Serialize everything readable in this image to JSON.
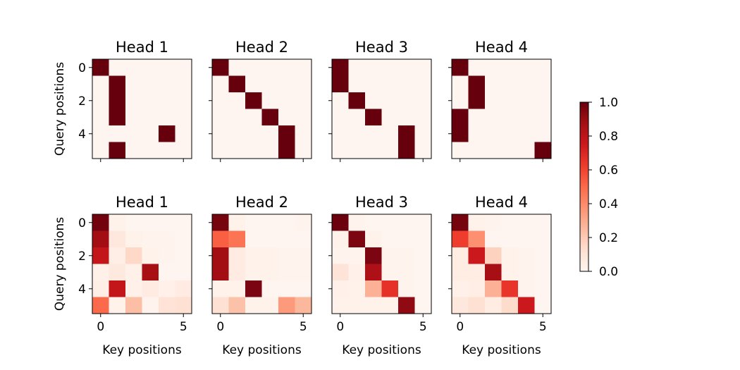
{
  "chart_data": {
    "type": "heatmap",
    "grid": false,
    "colormap": "Reds",
    "colorbar": {
      "min": 0.0,
      "max": 1.0,
      "ticks": [
        "0.0",
        "0.2",
        "0.4",
        "0.6",
        "0.8",
        "1.0"
      ]
    },
    "xlabel": "Key positions",
    "ylabel": "Query positions",
    "x_ticks": [
      "0",
      "5"
    ],
    "y_ticks": [
      "0",
      "2",
      "4"
    ],
    "rows": 6,
    "cols": 6,
    "panels": [
      {
        "title": "Head 1",
        "values": [
          [
            1,
            0,
            0,
            0,
            0,
            0
          ],
          [
            0,
            1,
            0,
            0,
            0,
            0
          ],
          [
            0,
            1,
            0,
            0,
            0,
            0
          ],
          [
            0,
            1,
            0,
            0,
            0,
            0
          ],
          [
            0,
            0,
            0,
            0,
            1,
            0
          ],
          [
            0,
            1,
            0,
            0,
            0,
            0
          ]
        ]
      },
      {
        "title": "Head 2",
        "values": [
          [
            1,
            0,
            0,
            0,
            0,
            0
          ],
          [
            0,
            1,
            0,
            0,
            0,
            0
          ],
          [
            0,
            0,
            1,
            0,
            0,
            0
          ],
          [
            0,
            0,
            0,
            1,
            0,
            0
          ],
          [
            0,
            0,
            0,
            0,
            1,
            0
          ],
          [
            0,
            0,
            0,
            0,
            1,
            0
          ]
        ]
      },
      {
        "title": "Head 3",
        "values": [
          [
            1,
            0,
            0,
            0,
            0,
            0
          ],
          [
            1,
            0,
            0,
            0,
            0,
            0
          ],
          [
            0,
            1,
            0,
            0,
            0,
            0
          ],
          [
            0,
            0,
            1,
            0,
            0,
            0
          ],
          [
            0,
            0,
            0,
            0,
            1,
            0
          ],
          [
            0,
            0,
            0,
            0,
            1,
            0
          ]
        ]
      },
      {
        "title": "Head 4",
        "values": [
          [
            1,
            0,
            0,
            0,
            0,
            0
          ],
          [
            0,
            1,
            0,
            0,
            0,
            0
          ],
          [
            0,
            1,
            0,
            0,
            0,
            0
          ],
          [
            1,
            0,
            0,
            0,
            0,
            0
          ],
          [
            1,
            0,
            0,
            0,
            0,
            0
          ],
          [
            0,
            0,
            0,
            0,
            0,
            1
          ]
        ]
      },
      {
        "title": "Head 1",
        "values": [
          [
            0.98,
            0.02,
            0,
            0,
            0,
            0
          ],
          [
            0.88,
            0.08,
            0.02,
            0.01,
            0.01,
            0
          ],
          [
            0.78,
            0.04,
            0.15,
            0.02,
            0.01,
            0
          ],
          [
            0.03,
            0.07,
            0.03,
            0.87,
            0,
            0
          ],
          [
            0.04,
            0.78,
            0.03,
            0.06,
            0.03,
            0.06
          ],
          [
            0.5,
            0.02,
            0.24,
            0.01,
            0.11,
            0.12
          ]
        ]
      },
      {
        "title": "Head 2",
        "values": [
          [
            0.97,
            0.02,
            0,
            0,
            0,
            0.01
          ],
          [
            0.53,
            0.47,
            0,
            0,
            0,
            0
          ],
          [
            0.88,
            0.06,
            0.02,
            0.02,
            0.01,
            0.01
          ],
          [
            0.88,
            0.06,
            0.02,
            0.02,
            0.01,
            0.01
          ],
          [
            0.02,
            0.02,
            0.96,
            0,
            0,
            0
          ],
          [
            0.12,
            0.23,
            0.02,
            0.02,
            0.35,
            0.26
          ]
        ]
      },
      {
        "title": "Head 3",
        "values": [
          [
            0.99,
            0.01,
            0,
            0,
            0,
            0
          ],
          [
            0.02,
            0.96,
            0.02,
            0,
            0,
            0
          ],
          [
            0.01,
            0.01,
            0.96,
            0.01,
            0.01,
            0
          ],
          [
            0.1,
            0.03,
            0.85,
            0.01,
            0.01,
            0
          ],
          [
            0.03,
            0.02,
            0.28,
            0.66,
            0.01,
            0
          ],
          [
            0.02,
            0.02,
            0.02,
            0.02,
            0.92,
            0
          ]
        ]
      },
      {
        "title": "Head 4",
        "values": [
          [
            0.97,
            0.02,
            0.01,
            0,
            0,
            0
          ],
          [
            0.62,
            0.38,
            0,
            0,
            0,
            0
          ],
          [
            0.05,
            0.75,
            0.17,
            0.02,
            0.01,
            0
          ],
          [
            0.05,
            0.05,
            0.87,
            0.02,
            0.01,
            0
          ],
          [
            0.03,
            0.04,
            0.28,
            0.65,
            0.01,
            0
          ],
          [
            0.08,
            0.12,
            0.05,
            0.14,
            0.75,
            0
          ]
        ]
      }
    ]
  }
}
